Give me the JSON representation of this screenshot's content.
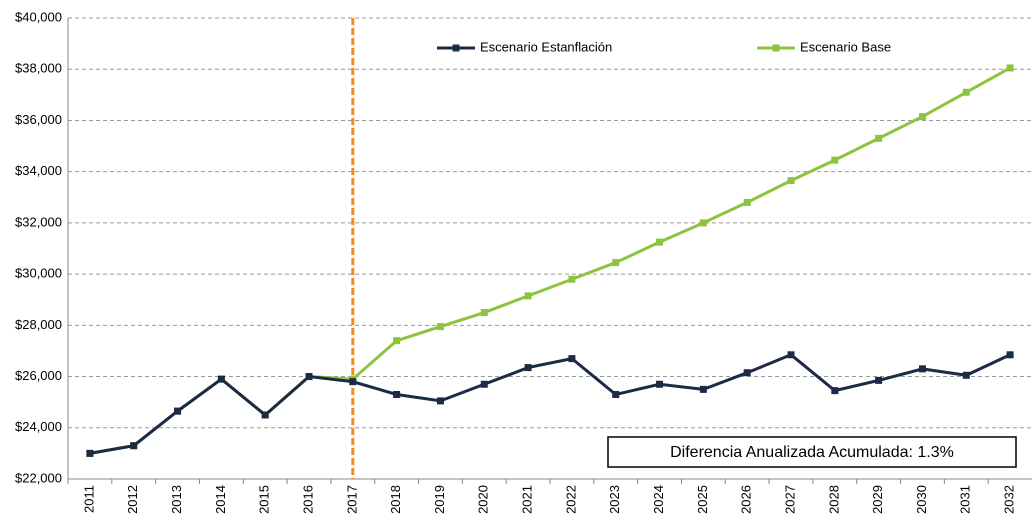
{
  "chart_data": {
    "type": "line",
    "categories": [
      "2011",
      "2012",
      "2013",
      "2014",
      "2015",
      "2016",
      "2017",
      "2018",
      "2019",
      "2020",
      "2021",
      "2022",
      "2023",
      "2024",
      "2025",
      "2026",
      "2027",
      "2028",
      "2029",
      "2030",
      "2031",
      "2032"
    ],
    "series": [
      {
        "name": "Escenario Estanflación",
        "color": "#1b2a45",
        "values": [
          23000,
          23300,
          24650,
          25900,
          24500,
          26000,
          25800,
          25300,
          25050,
          25700,
          26350,
          26700,
          25300,
          25700,
          25500,
          26150,
          26850,
          25450,
          25850,
          26300,
          26050,
          26850
        ]
      },
      {
        "name": "Escenario Base",
        "color": "#8cc43e",
        "values": [
          23000,
          23300,
          24650,
          25900,
          24500,
          26000,
          25900,
          27400,
          27950,
          28500,
          29150,
          29800,
          30450,
          31250,
          32000,
          32800,
          33650,
          34450,
          35300,
          36150,
          37100,
          38050
        ]
      }
    ],
    "ylim": [
      22000,
      40000
    ],
    "yticks": [
      {
        "value": 22000,
        "label": "$22,000"
      },
      {
        "value": 24000,
        "label": "$24,000"
      },
      {
        "value": 26000,
        "label": "$26,000"
      },
      {
        "value": 28000,
        "label": "$28,000"
      },
      {
        "value": 30000,
        "label": "$30,000"
      },
      {
        "value": 32000,
        "label": "$32,000"
      },
      {
        "value": 34000,
        "label": "$34,000"
      },
      {
        "value": 36000,
        "label": "$36,000"
      },
      {
        "value": 38000,
        "label": "$38,000"
      },
      {
        "value": 40000,
        "label": "$40,000"
      }
    ],
    "grid": true,
    "vline_at": "2017",
    "vline_color": "#f08a24",
    "annotation": "Diferencia Anualizada Acumulada: 1.3%"
  }
}
